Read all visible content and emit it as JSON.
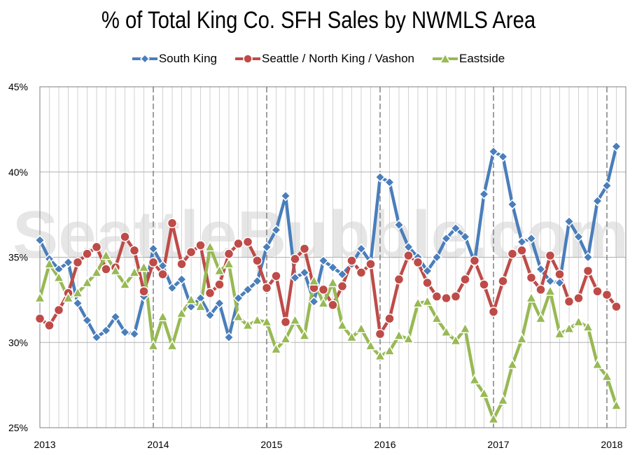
{
  "chart_data": {
    "type": "line",
    "title": "% of Total King Co. SFH Sales by NWMLS Area",
    "watermark": "SeattleBubble.com",
    "ylim": [
      25,
      45
    ],
    "y_ticks": [
      "45%",
      "40%",
      "35%",
      "30%",
      "25%"
    ],
    "y_tick_values": [
      45,
      40,
      35,
      30,
      25
    ],
    "x_ticks": [
      "2013",
      "2014",
      "2015",
      "2016",
      "2017",
      "2018"
    ],
    "x_tick_values": [
      0,
      12,
      24,
      36,
      48,
      60
    ],
    "x_range": [
      0,
      62
    ],
    "grid": true,
    "legend": "top",
    "series": [
      {
        "name": "South King",
        "color": "#4a7ebb",
        "marker": "diamond",
        "values": [
          36.0,
          34.9,
          34.3,
          34.7,
          32.3,
          31.3,
          30.3,
          30.7,
          31.5,
          30.6,
          30.5,
          32.7,
          35.5,
          34.5,
          33.2,
          33.7,
          32.1,
          32.6,
          31.6,
          32.3,
          30.3,
          32.6,
          33.1,
          33.6,
          35.6,
          36.6,
          38.6,
          33.8,
          34.1,
          32.4,
          34.8,
          34.4,
          34.0,
          34.6,
          35.5,
          34.7,
          39.7,
          39.4,
          36.9,
          35.6,
          35.0,
          34.2,
          35.0,
          36.1,
          36.7,
          36.2,
          34.7,
          38.7,
          41.2,
          40.9,
          38.1,
          35.9,
          36.1,
          34.3,
          33.6,
          33.5,
          37.1,
          36.2,
          35.0,
          38.3,
          39.2,
          41.5
        ]
      },
      {
        "name": "Seattle / North King / Vashon",
        "color": "#be4b48",
        "marker": "circle",
        "values": [
          31.4,
          31.0,
          31.9,
          32.9,
          34.7,
          35.2,
          35.6,
          34.3,
          34.4,
          36.2,
          35.4,
          33.0,
          34.7,
          34.0,
          37.0,
          34.6,
          35.3,
          35.7,
          32.9,
          33.4,
          35.2,
          35.8,
          35.9,
          34.8,
          33.2,
          33.9,
          31.2,
          34.9,
          35.5,
          33.2,
          33.1,
          32.2,
          33.3,
          34.8,
          34.1,
          34.6,
          30.5,
          31.4,
          33.7,
          35.1,
          34.7,
          33.5,
          32.7,
          32.6,
          32.7,
          33.7,
          34.8,
          33.4,
          31.8,
          33.6,
          35.2,
          35.4,
          33.8,
          33.1,
          35.1,
          34.0,
          32.4,
          32.6,
          34.2,
          33.0,
          32.8,
          32.1
        ]
      },
      {
        "name": "Eastside",
        "color": "#98b954",
        "marker": "triangle",
        "values": [
          32.6,
          34.6,
          33.8,
          32.6,
          32.9,
          33.5,
          34.1,
          35.1,
          34.2,
          33.4,
          34.1,
          34.4,
          29.8,
          31.5,
          29.8,
          31.7,
          32.5,
          32.1,
          35.6,
          34.2,
          34.6,
          31.5,
          31.0,
          31.3,
          31.2,
          29.6,
          30.2,
          31.3,
          30.4,
          33.6,
          32.3,
          33.5,
          31.0,
          30.3,
          30.8,
          29.8,
          29.2,
          29.5,
          30.4,
          30.2,
          32.3,
          32.4,
          31.4,
          30.6,
          30.1,
          30.8,
          27.8,
          27.0,
          25.5,
          26.6,
          28.7,
          30.2,
          32.6,
          31.4,
          33.0,
          30.5,
          30.8,
          31.2,
          30.9,
          28.7,
          28.0,
          26.3
        ]
      }
    ]
  }
}
